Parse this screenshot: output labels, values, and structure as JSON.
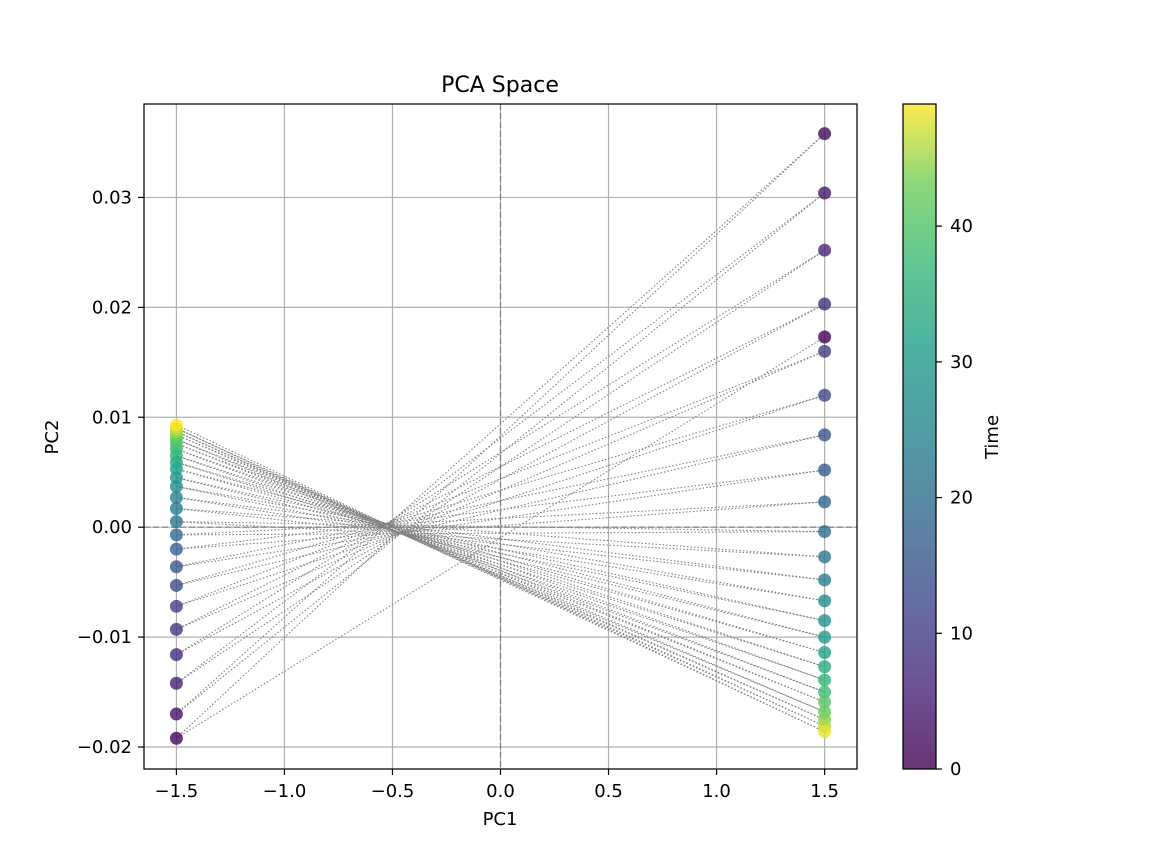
{
  "chart_data": {
    "type": "scatter",
    "title": "PCA Space",
    "xlabel": "PC1",
    "ylabel": "PC2",
    "xlim": [
      -1.65,
      1.65
    ],
    "ylim": [
      -0.022,
      0.0385
    ],
    "xticks": [
      -1.5,
      -1.0,
      -0.5,
      0.0,
      0.5,
      1.0,
      1.5
    ],
    "xtick_labels": [
      "−1.5",
      "−1.0",
      "−0.5",
      "0.0",
      "0.5",
      "1.0",
      "1.5"
    ],
    "yticks": [
      -0.02,
      -0.01,
      0.0,
      0.01,
      0.02,
      0.03
    ],
    "ytick_labels": [
      "−0.02",
      "−0.01",
      "0.00",
      "0.01",
      "0.02",
      "0.03"
    ],
    "grid": true,
    "reference_lines": {
      "x": 0,
      "y": 0
    },
    "point_colormap": "viridis",
    "colorbar": {
      "label": "Time",
      "range": [
        0,
        49
      ],
      "ticks": [
        0,
        10,
        20,
        30,
        40
      ],
      "tick_labels": [
        "0",
        "10",
        "20",
        "30",
        "40"
      ]
    },
    "series": [
      {
        "x": [
          -1.5,
          -1.5,
          -1.5,
          -1.5,
          -1.5,
          -1.5,
          -1.5,
          -1.5,
          -1.5,
          -1.5,
          -1.5,
          -1.5,
          -1.5,
          -1.5,
          -1.5,
          -1.5,
          -1.5,
          -1.5,
          -1.5,
          -1.5,
          -1.5,
          -1.5,
          -1.5,
          -1.5,
          -1.5,
          1.5,
          1.5,
          1.5,
          1.5,
          1.5,
          1.5,
          1.5,
          1.5,
          1.5,
          1.5,
          1.5,
          1.5,
          1.5,
          1.5,
          1.5,
          1.5,
          1.5,
          1.5,
          1.5,
          1.5,
          1.5,
          1.5,
          1.5,
          1.5,
          1.5
        ],
        "y": [
          -0.0192,
          -0.017,
          -0.0142,
          -0.0116,
          -0.0093,
          -0.0072,
          -0.0053,
          -0.0036,
          -0.002,
          -0.0007,
          0.0005,
          0.0017,
          0.0027,
          0.0037,
          0.0045,
          0.0053,
          0.0059,
          0.0065,
          0.0071,
          0.0076,
          0.008,
          0.0084,
          0.0087,
          0.009,
          0.0093,
          0.0173,
          0.0358,
          0.0304,
          0.0252,
          0.0203,
          0.016,
          0.012,
          0.0084,
          0.0052,
          0.0023,
          -0.0004,
          -0.0027,
          -0.0048,
          -0.0067,
          -0.0085,
          -0.01,
          -0.0114,
          -0.0127,
          -0.0139,
          -0.015,
          -0.0159,
          -0.0168,
          -0.0175,
          -0.0181,
          -0.0186
        ],
        "time": [
          1,
          3,
          5,
          7,
          9,
          11,
          13,
          15,
          17,
          19,
          21,
          23,
          25,
          27,
          29,
          31,
          33,
          35,
          37,
          39,
          41,
          43,
          45,
          47,
          49,
          0,
          2,
          4,
          6,
          8,
          10,
          12,
          14,
          16,
          18,
          20,
          22,
          24,
          26,
          28,
          30,
          32,
          34,
          36,
          38,
          40,
          42,
          44,
          46,
          48
        ]
      }
    ],
    "segments_from": [
      [
        1.5,
        0.0173
      ],
      [
        1.5,
        0.0358
      ],
      [
        1.5,
        0.0304
      ],
      [
        1.5,
        0.0252
      ],
      [
        1.5,
        0.0203
      ],
      [
        1.5,
        0.016
      ],
      [
        1.5,
        0.012
      ],
      [
        1.5,
        0.0084
      ],
      [
        1.5,
        0.0052
      ],
      [
        1.5,
        0.0023
      ],
      [
        1.5,
        -0.0004
      ],
      [
        1.5,
        -0.0027
      ],
      [
        1.5,
        -0.0048
      ],
      [
        1.5,
        -0.0067
      ],
      [
        1.5,
        -0.0085
      ],
      [
        1.5,
        -0.01
      ],
      [
        1.5,
        -0.0114
      ],
      [
        1.5,
        -0.0127
      ],
      [
        1.5,
        -0.0139
      ],
      [
        1.5,
        -0.015
      ],
      [
        1.5,
        -0.0159
      ],
      [
        1.5,
        -0.0168
      ],
      [
        1.5,
        -0.0175
      ],
      [
        1.5,
        -0.0181
      ],
      [
        1.5,
        -0.0186
      ]
    ],
    "segments_to_mid": [
      [
        -1.5,
        -0.0192
      ],
      [
        -1.5,
        -0.017
      ],
      [
        -1.5,
        -0.0142
      ],
      [
        -1.5,
        -0.0116
      ],
      [
        -1.5,
        -0.0093
      ],
      [
        -1.5,
        -0.0072
      ],
      [
        -1.5,
        -0.0053
      ],
      [
        -1.5,
        -0.0036
      ],
      [
        -1.5,
        -0.002
      ],
      [
        -1.5,
        -0.0007
      ],
      [
        -1.5,
        0.0005
      ],
      [
        -1.5,
        0.0017
      ],
      [
        -1.5,
        0.0027
      ],
      [
        -1.5,
        0.0037
      ],
      [
        -1.5,
        0.0045
      ],
      [
        -1.5,
        0.0053
      ],
      [
        -1.5,
        0.0059
      ],
      [
        -1.5,
        0.0065
      ],
      [
        -1.5,
        0.0071
      ],
      [
        -1.5,
        0.0076
      ],
      [
        -1.5,
        0.008
      ],
      [
        -1.5,
        0.0084
      ],
      [
        -1.5,
        0.0087
      ],
      [
        -1.5,
        0.009
      ],
      [
        -1.5,
        0.0093
      ]
    ]
  }
}
